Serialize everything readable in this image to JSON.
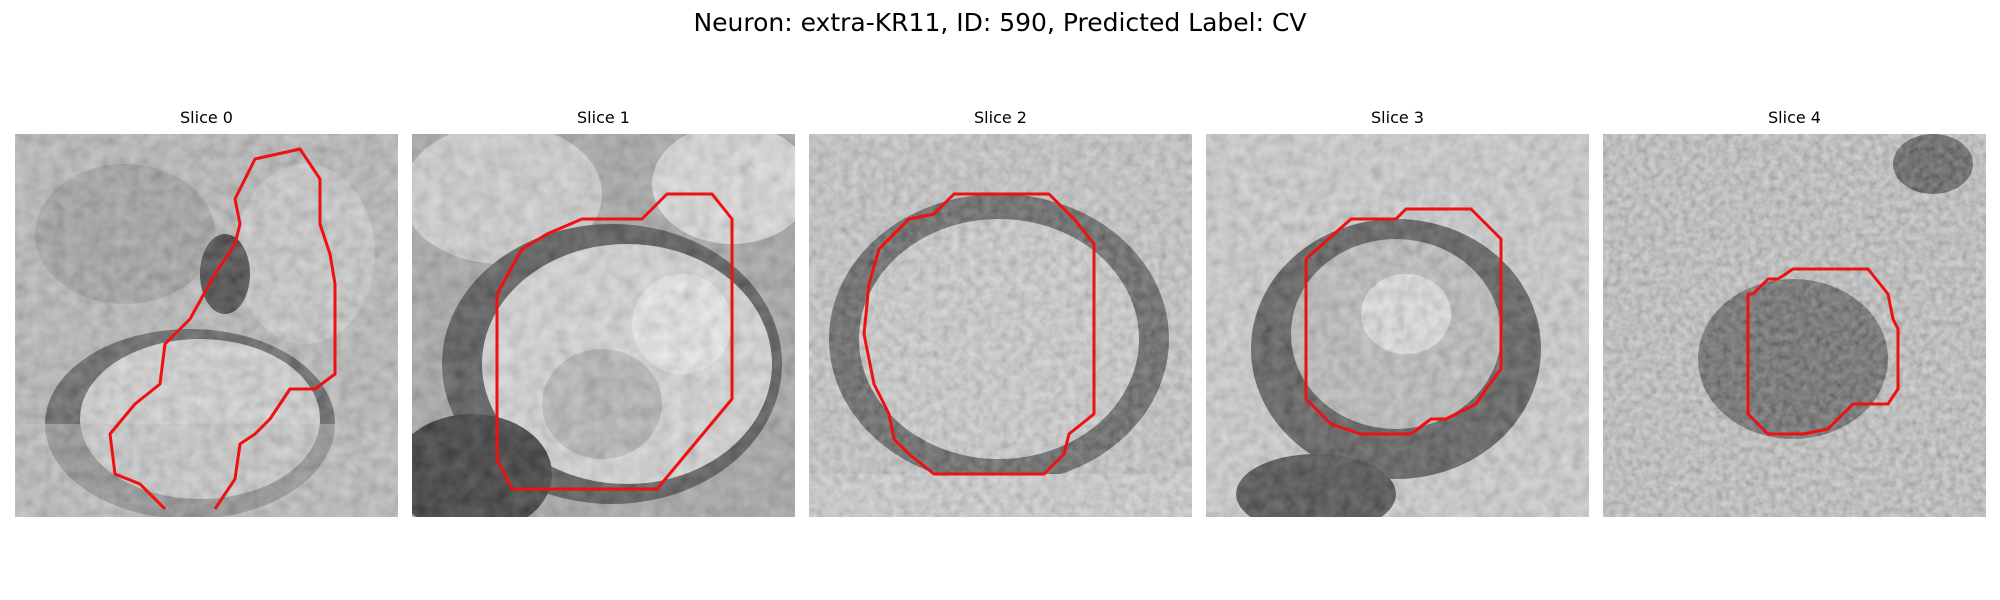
{
  "figure": {
    "title": "Neuron: extra-KR11, ID: 590, Predicted Label: CV"
  },
  "contour_color": "#ee1111",
  "panels": [
    {
      "title": "Slice 0"
    },
    {
      "title": "Slice 1"
    },
    {
      "title": "Slice 2"
    },
    {
      "title": "Slice 3"
    },
    {
      "title": "Slice 4"
    }
  ]
}
